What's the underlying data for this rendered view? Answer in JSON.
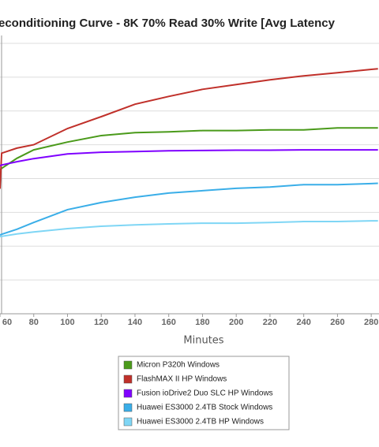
{
  "chart_data": {
    "type": "line",
    "title": "econditioning Curve - 8K 70% Read 30% Write [Avg Latency",
    "x_label": "Minutes",
    "x": [
      60,
      61,
      70,
      80,
      100,
      120,
      140,
      160,
      180,
      200,
      220,
      240,
      260,
      280,
      284
    ],
    "xlim": [
      60,
      284
    ],
    "xticks": [
      60,
      80,
      100,
      120,
      140,
      160,
      180,
      200,
      220,
      240,
      260,
      280
    ],
    "ylim": [
      0,
      8
    ],
    "grid": true,
    "series": [
      {
        "name": "Micron P320h Windows",
        "color": "#4a9a1a",
        "values": [
          4.25,
          4.3,
          4.6,
          4.85,
          5.08,
          5.27,
          5.36,
          5.38,
          5.42,
          5.42,
          5.44,
          5.44,
          5.5,
          5.5,
          5.5
        ]
      },
      {
        "name": "FlashMAX II HP Windows",
        "color": "#c0302a",
        "values": [
          3.7,
          4.75,
          4.9,
          5.0,
          5.48,
          5.83,
          6.2,
          6.43,
          6.64,
          6.78,
          6.92,
          7.04,
          7.13,
          7.23,
          7.25
        ]
      },
      {
        "name": "Fusion ioDrive2 Duo SLC HP Windows",
        "color": "#7f00ff",
        "values": [
          4.38,
          4.4,
          4.5,
          4.59,
          4.73,
          4.78,
          4.8,
          4.82,
          4.83,
          4.84,
          4.84,
          4.85,
          4.85,
          4.85,
          4.85
        ]
      },
      {
        "name": "Huawei ES3000 2.4TB Stock Windows",
        "color": "#3aaee8",
        "values": [
          2.33,
          2.35,
          2.5,
          2.7,
          3.08,
          3.29,
          3.45,
          3.57,
          3.64,
          3.71,
          3.75,
          3.82,
          3.82,
          3.85,
          3.86
        ]
      },
      {
        "name": "Huawei ES3000 2.4TB HP Windows",
        "color": "#7fd6f5",
        "values": [
          2.28,
          2.29,
          2.36,
          2.42,
          2.52,
          2.59,
          2.63,
          2.66,
          2.68,
          2.68,
          2.7,
          2.73,
          2.73,
          2.75,
          2.75
        ]
      }
    ]
  }
}
